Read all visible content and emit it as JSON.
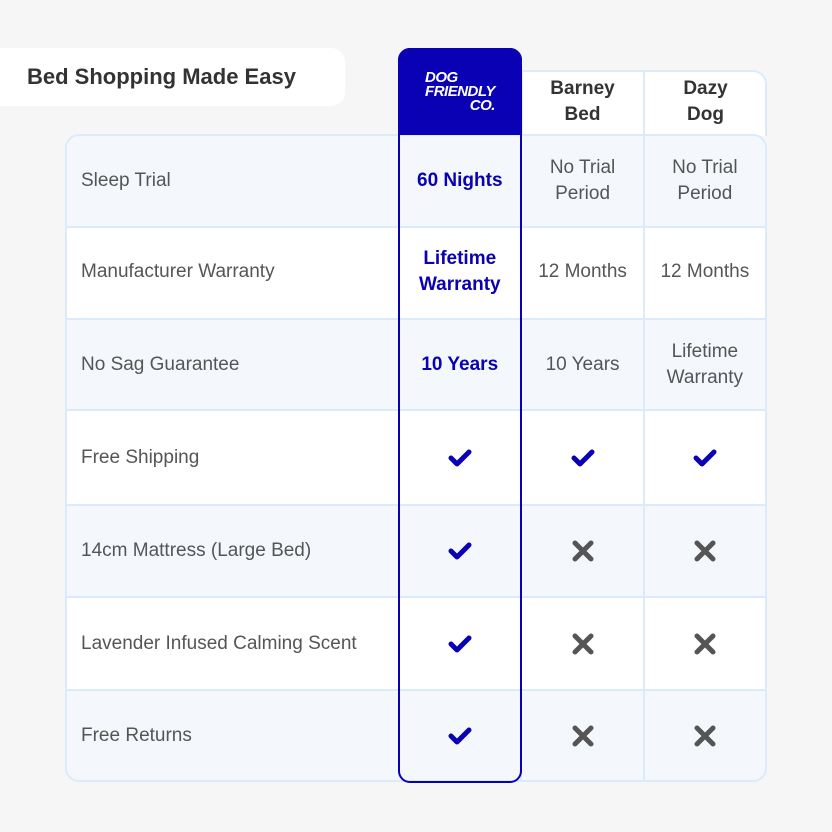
{
  "title": "Bed Shopping Made Easy",
  "columns": {
    "brand_logo": {
      "line1": "DOG",
      "line2": "FRIENDLY",
      "line3": "CO."
    },
    "competitor1": {
      "line1": "Barney",
      "line2": "Bed"
    },
    "competitor2": {
      "line1": "Dazy",
      "line2": "Dog"
    }
  },
  "colors": {
    "brand": "#0a00b4",
    "cross": "#555555",
    "border": "#dcebfb",
    "row_alt": "#f4f8fd"
  },
  "rows": [
    {
      "label": "Sleep Trial",
      "values": [
        {
          "text": "60 Nights"
        },
        {
          "text": "No Trial Period"
        },
        {
          "text": "No Trial Period"
        }
      ]
    },
    {
      "label": "Manufacturer Warranty",
      "values": [
        {
          "text": "Lifetime Warranty"
        },
        {
          "text": "12 Months"
        },
        {
          "text": "12 Months"
        }
      ]
    },
    {
      "label": "No Sag Guarantee",
      "values": [
        {
          "text": "10 Years"
        },
        {
          "text": "10 Years"
        },
        {
          "text": "Lifetime Warranty"
        }
      ]
    },
    {
      "label": "Free Shipping",
      "values": [
        {
          "icon": "check-icon"
        },
        {
          "icon": "check-icon"
        },
        {
          "icon": "check-icon"
        }
      ]
    },
    {
      "label": "14cm Mattress (Large Bed)",
      "values": [
        {
          "icon": "check-icon"
        },
        {
          "icon": "cross-icon"
        },
        {
          "icon": "cross-icon"
        }
      ]
    },
    {
      "label": "Lavender Infused Calming Scent",
      "values": [
        {
          "icon": "check-icon"
        },
        {
          "icon": "cross-icon"
        },
        {
          "icon": "cross-icon"
        }
      ]
    },
    {
      "label": "Free Returns",
      "values": [
        {
          "icon": "check-icon"
        },
        {
          "icon": "cross-icon"
        },
        {
          "icon": "cross-icon"
        }
      ]
    }
  ]
}
